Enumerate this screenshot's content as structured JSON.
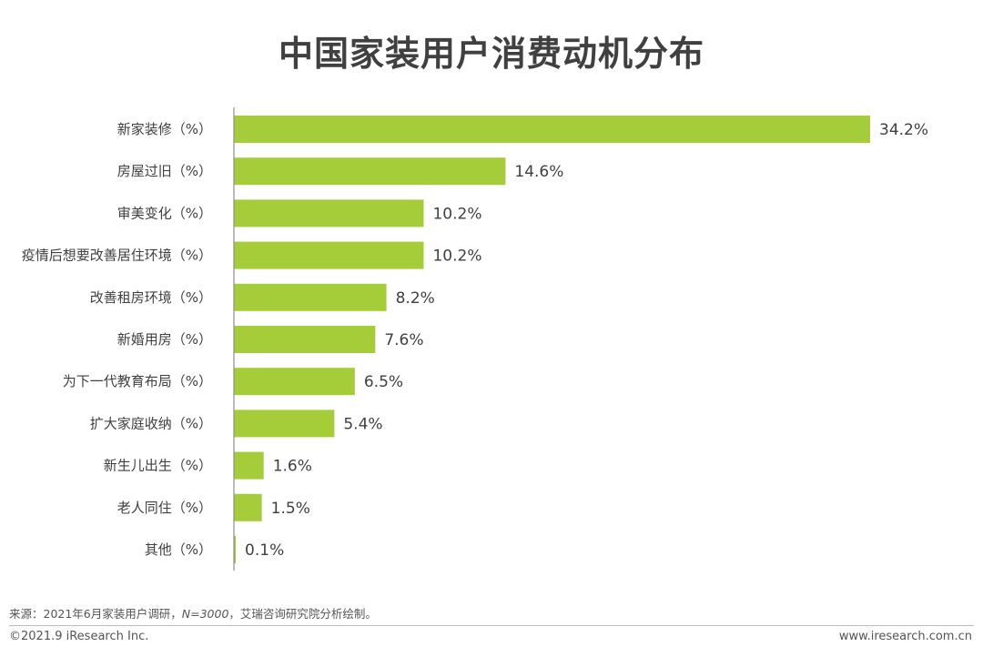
{
  "chart_data": {
    "type": "bar",
    "orientation": "horizontal",
    "title": "中国家装用户消费动机分布",
    "categories": [
      "新家装修（%）",
      "房屋过旧（%）",
      "审美变化（%）",
      "疫情后想要改善居住环境（%）",
      "改善租房环境（%）",
      "新婚用房（%）",
      "为下一代教育布局（%）",
      "扩大家庭收纳（%）",
      "新生儿出生（%）",
      "老人同住（%）",
      "其他（%）"
    ],
    "values": [
      34.2,
      14.6,
      10.2,
      10.2,
      8.2,
      7.6,
      6.5,
      5.4,
      1.6,
      1.5,
      0.1
    ],
    "value_labels": [
      "34.2%",
      "14.6%",
      "10.2%",
      "10.2%",
      "8.2%",
      "7.6%",
      "6.5%",
      "5.4%",
      "1.6%",
      "1.5%",
      "0.1%"
    ],
    "xlim": [
      0,
      34.2
    ],
    "grid": false,
    "legend": "none",
    "bar_color": "#a5cd39"
  },
  "footer": {
    "source_prefix": "来源：2021年6月家装用户调研，",
    "source_n": "N=3000",
    "source_suffix": "，艾瑞咨询研究院分析绘制。",
    "copyright": "©2021.9 iResearch Inc.",
    "website": "www.iresearch.com.cn"
  },
  "colors": {
    "bar": "#a5cd39",
    "axis": "#8c8c8c",
    "title": "#404040"
  }
}
